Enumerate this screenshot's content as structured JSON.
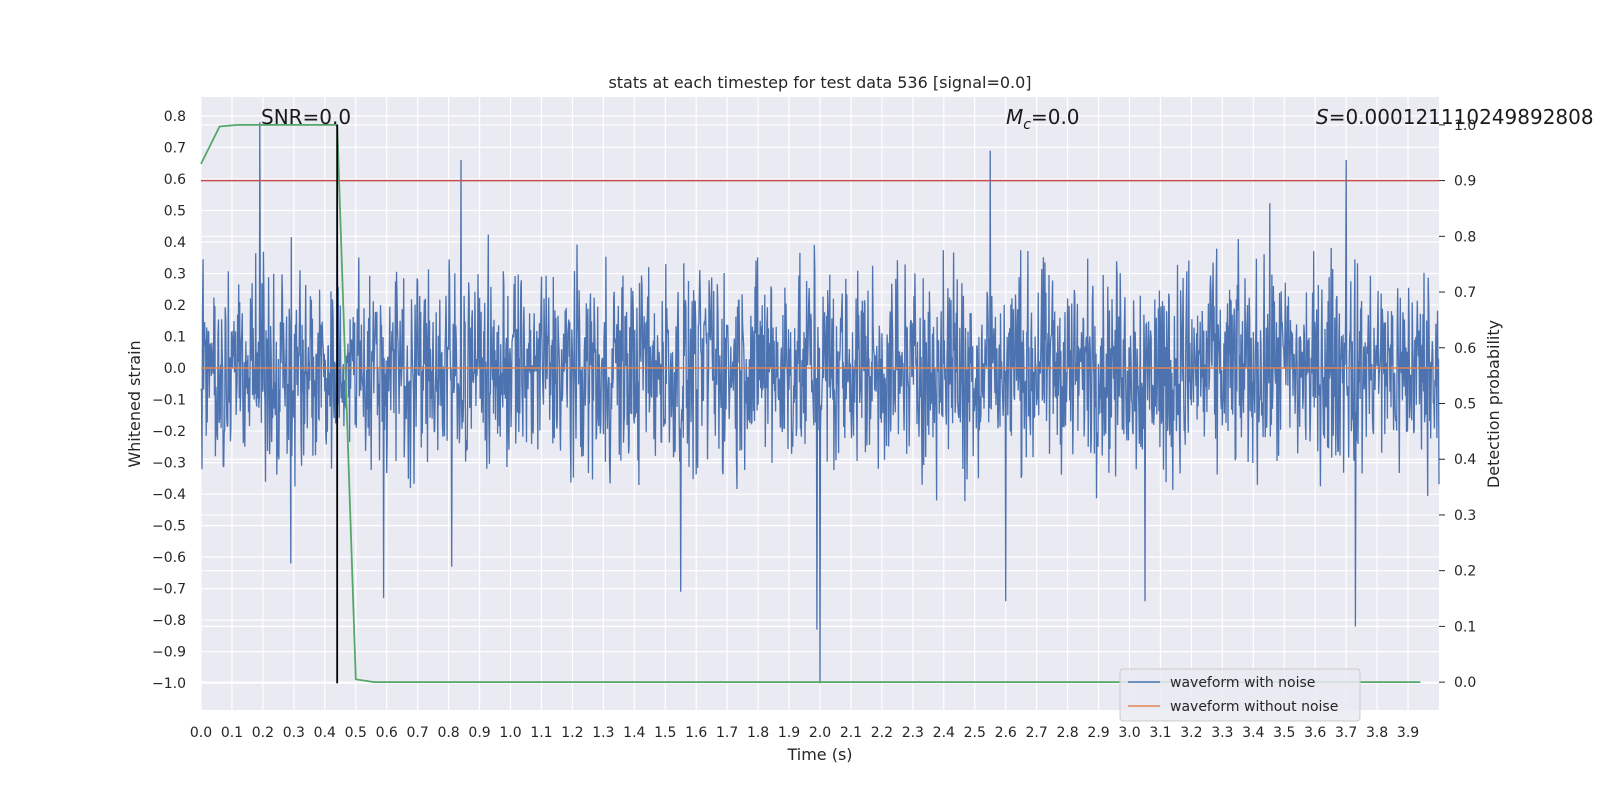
{
  "chart_data": {
    "type": "line",
    "title": "stats at each timestep for test data 536 [signal=0.0]",
    "xlabel": "Time (s)",
    "ylabel": "Whitened strain",
    "y2label": "Detection probability",
    "xlim": [
      0.0,
      4.0
    ],
    "ylim": [
      -1.085,
      0.86
    ],
    "y2lim": [
      -0.05,
      1.05
    ],
    "grid": true,
    "legend_position": "lower-right",
    "xticks": [
      0.0,
      0.1,
      0.2,
      0.3,
      0.4,
      0.5,
      0.6,
      0.7,
      0.8,
      0.9,
      1.0,
      1.1,
      1.2,
      1.3,
      1.4,
      1.5,
      1.6,
      1.7,
      1.8,
      1.9,
      2.0,
      2.1,
      2.2,
      2.3,
      2.4,
      2.5,
      2.6,
      2.7,
      2.8,
      2.9,
      3.0,
      3.1,
      3.2,
      3.3,
      3.4,
      3.5,
      3.6,
      3.7,
      3.8,
      3.9
    ],
    "xtick_labels": [
      "0.0",
      "0.1",
      "0.2",
      "0.3",
      "0.4",
      "0.5",
      "0.6",
      "0.7",
      "0.8",
      "0.9",
      "1.0",
      "1.1",
      "1.2",
      "1.3",
      "1.4",
      "1.5",
      "1.6",
      "1.7",
      "1.8",
      "1.9",
      "2.0",
      "2.1",
      "2.2",
      "2.3",
      "2.4",
      "2.5",
      "2.6",
      "2.7",
      "2.8",
      "2.9",
      "3.0",
      "3.1",
      "3.2",
      "3.3",
      "3.4",
      "3.5",
      "3.6",
      "3.7",
      "3.8",
      "3.9"
    ],
    "yticks": [
      0.8,
      0.7,
      0.6,
      0.5,
      0.4,
      0.3,
      0.2,
      0.1,
      0.0,
      -0.1,
      -0.2,
      -0.3,
      -0.4,
      -0.5,
      -0.6,
      -0.7,
      -0.8,
      -0.9,
      -1.0
    ],
    "ytick_labels": [
      "0.8",
      "0.7",
      "0.6",
      "0.5",
      "0.4",
      "0.3",
      "0.2",
      "0.1",
      "0.0",
      "−0.1",
      "−0.2",
      "−0.3",
      "−0.4",
      "−0.5",
      "−0.6",
      "−0.7",
      "−0.8",
      "−0.9",
      "−1.0"
    ],
    "y2ticks": [
      1.0,
      0.9,
      0.8,
      0.7,
      0.6,
      0.5,
      0.4,
      0.3,
      0.2,
      0.1,
      0.0
    ],
    "y2tick_labels": [
      "1.0",
      "0.9",
      "0.8",
      "0.7",
      "0.6",
      "0.5",
      "0.4",
      "0.3",
      "0.2",
      "0.1",
      "0.0"
    ],
    "series": [
      {
        "name": "waveform with noise",
        "color": "#4c72b0",
        "kind": "noise",
        "x_range": [
          0.0,
          4.0
        ],
        "y_range": [
          -1.0,
          0.78
        ],
        "typical_amplitude": [
          -0.45,
          0.45
        ],
        "spikes": [
          [
            0.19,
            0.78
          ],
          [
            0.44,
            0.75
          ],
          [
            0.84,
            0.66
          ],
          [
            2.55,
            0.69
          ],
          [
            3.7,
            0.66
          ],
          [
            2.0,
            -1.0
          ],
          [
            1.99,
            -0.83
          ],
          [
            3.73,
            -0.82
          ],
          [
            0.59,
            -0.73
          ],
          [
            1.55,
            -0.71
          ],
          [
            2.6,
            -0.74
          ],
          [
            3.05,
            -0.74
          ],
          [
            0.29,
            -0.62
          ],
          [
            0.81,
            -0.63
          ]
        ]
      },
      {
        "name": "waveform without noise",
        "color": "#dd8452",
        "x": [
          0.0,
          4.0
        ],
        "y": [
          0.0,
          0.0
        ]
      },
      {
        "axis": "right",
        "color": "#55a868",
        "x": [
          0.0,
          0.06,
          0.12,
          0.44,
          0.5,
          0.56,
          3.94
        ],
        "y": [
          0.93,
          0.997,
          1.0,
          1.0,
          0.005,
          0.0,
          0.0
        ]
      }
    ],
    "threshold": {
      "axis": "right",
      "value": 0.9,
      "color": "#c44e52"
    },
    "marker_line": {
      "x": 0.44,
      "color": "#000000"
    },
    "annotations": [
      "SNR=0.0",
      "=0.0",
      "=0.00012111024989280​8"
    ]
  },
  "annotations_text": {
    "snr": "SNR=0.0",
    "mc_symbol": "M",
    "mc_sub": "c",
    "mc_value": "=0.0",
    "s_symbol": "S",
    "s_value": "=0.00012111024989280​8"
  }
}
